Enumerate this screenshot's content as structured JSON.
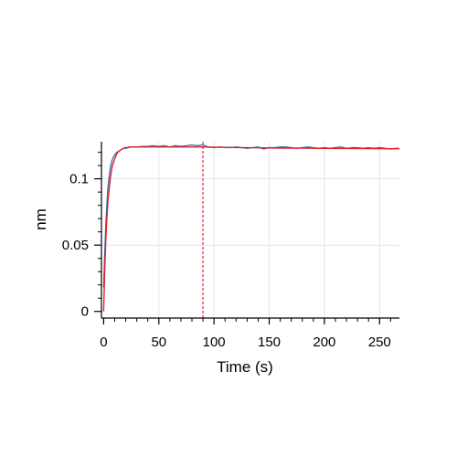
{
  "chart_data": {
    "type": "line",
    "xlabel": "Time (s)",
    "ylabel": "nm",
    "xlim": [
      -2,
      268
    ],
    "ylim": [
      -0.005,
      0.128
    ],
    "x_ticks": [
      0,
      50,
      100,
      150,
      200,
      250
    ],
    "x_tick_labels": [
      "0",
      "50",
      "100",
      "150",
      "200",
      "250"
    ],
    "y_ticks": [
      0,
      0.05,
      0.1
    ],
    "y_tick_labels": [
      "0",
      "0.05",
      "0.1"
    ],
    "grid": true,
    "reference_line": {
      "x": 90,
      "color": "#e8202a",
      "style": "dashed"
    },
    "series": [
      {
        "kind": "measured",
        "color": "#1f77b4",
        "x": [
          0,
          1,
          2,
          3,
          4,
          5,
          6,
          7,
          8,
          10,
          12,
          14,
          16,
          18,
          20,
          25,
          30,
          35,
          40,
          45,
          50,
          55,
          60,
          65,
          70,
          75,
          80,
          85,
          90,
          95,
          100,
          105,
          110,
          115,
          120,
          125,
          130,
          135,
          140,
          145,
          150,
          155,
          160,
          165,
          170,
          175,
          180,
          185,
          190,
          195,
          200,
          205,
          210,
          215,
          220,
          225,
          230,
          235,
          240,
          245,
          250,
          255,
          260,
          265,
          268
        ],
        "y": [
          0.018,
          0.044,
          0.066,
          0.082,
          0.094,
          0.102,
          0.108,
          0.112,
          0.115,
          0.118,
          0.12,
          0.121,
          0.122,
          0.123,
          0.123,
          0.124,
          0.124,
          0.1245,
          0.1245,
          0.125,
          0.1245,
          0.125,
          0.124,
          0.125,
          0.1245,
          0.125,
          0.1255,
          0.125,
          0.1255,
          0.124,
          0.1235,
          0.124,
          0.1235,
          0.1235,
          0.124,
          0.1235,
          0.123,
          0.1235,
          0.124,
          0.1225,
          0.1235,
          0.1235,
          0.124,
          0.124,
          0.1235,
          0.123,
          0.1235,
          0.124,
          0.1235,
          0.123,
          0.1235,
          0.123,
          0.1235,
          0.124,
          0.123,
          0.1235,
          0.1235,
          0.123,
          0.1235,
          0.123,
          0.1235,
          0.123,
          0.1225,
          0.123,
          0.123
        ]
      },
      {
        "kind": "fit",
        "color": "#e8202a",
        "x": [
          0,
          1,
          2,
          3,
          4,
          5,
          6,
          7,
          8,
          10,
          12,
          14,
          16,
          18,
          20,
          25,
          30,
          35,
          40,
          50,
          60,
          70,
          80,
          90,
          100,
          120,
          140,
          160,
          180,
          200,
          220,
          240,
          260,
          268
        ],
        "y": [
          0.0,
          0.031,
          0.054,
          0.071,
          0.084,
          0.093,
          0.1,
          0.106,
          0.11,
          0.115,
          0.119,
          0.121,
          0.122,
          0.123,
          0.1235,
          0.124,
          0.124,
          0.124,
          0.124,
          0.124,
          0.124,
          0.124,
          0.124,
          0.124,
          0.1238,
          0.1236,
          0.1234,
          0.1232,
          0.1231,
          0.123,
          0.1229,
          0.1228,
          0.1227,
          0.1227
        ]
      }
    ]
  }
}
